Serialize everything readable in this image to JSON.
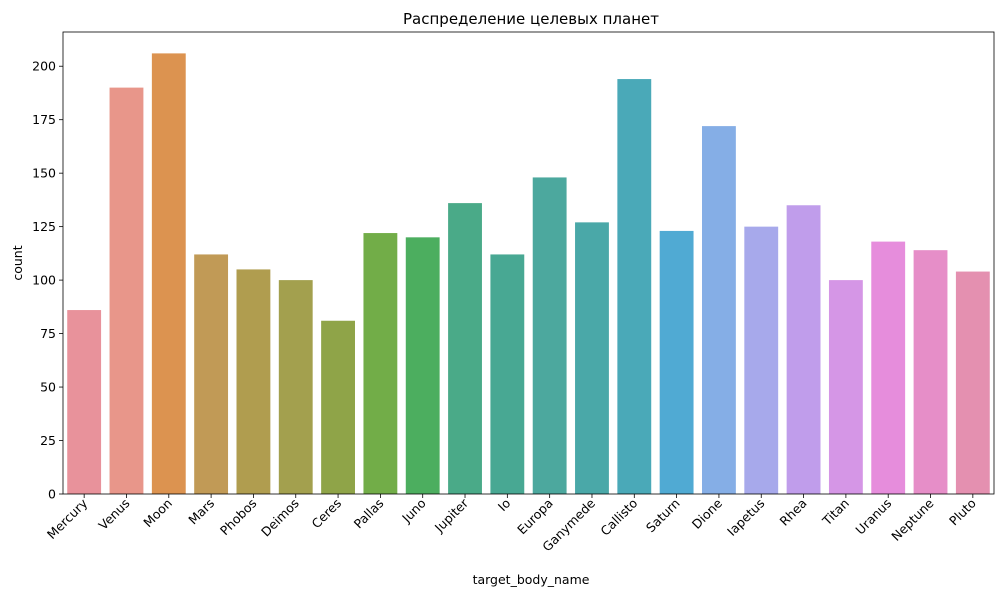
{
  "chart_data": {
    "type": "bar",
    "title": "Распределение целевых планет",
    "xlabel": "target_body_name",
    "ylabel": "count",
    "ylim": [
      0,
      216
    ],
    "yticks": [
      0,
      25,
      50,
      75,
      100,
      125,
      150,
      175,
      200
    ],
    "grid": false,
    "legend": "none",
    "categories": [
      "Mercury",
      "Venus",
      "Moon",
      "Mars",
      "Phobos",
      "Deimos",
      "Ceres",
      "Pallas",
      "Juno",
      "Jupiter",
      "Io",
      "Europa",
      "Ganymede",
      "Callisto",
      "Saturn",
      "Dione",
      "Iapetus",
      "Rhea",
      "Titan",
      "Uranus",
      "Neptune",
      "Pluto"
    ],
    "values": [
      86,
      190,
      206,
      112,
      105,
      100,
      81,
      122,
      120,
      136,
      112,
      148,
      127,
      194,
      123,
      172,
      125,
      135,
      100,
      118,
      114,
      104
    ],
    "colors": [
      "#e8929b",
      "#e8968a",
      "#dc9350",
      "#c19a56",
      "#b09d4f",
      "#a3a04e",
      "#8fa448",
      "#72ad48",
      "#4cae5f",
      "#4aaa88",
      "#48a893",
      "#4ca89e",
      "#4aa8a8",
      "#4aa9b8",
      "#50aad3",
      "#85aee6",
      "#a7a9eb",
      "#c09deb",
      "#d596e6",
      "#e68ddc",
      "#e68ec8",
      "#e490b0"
    ]
  }
}
